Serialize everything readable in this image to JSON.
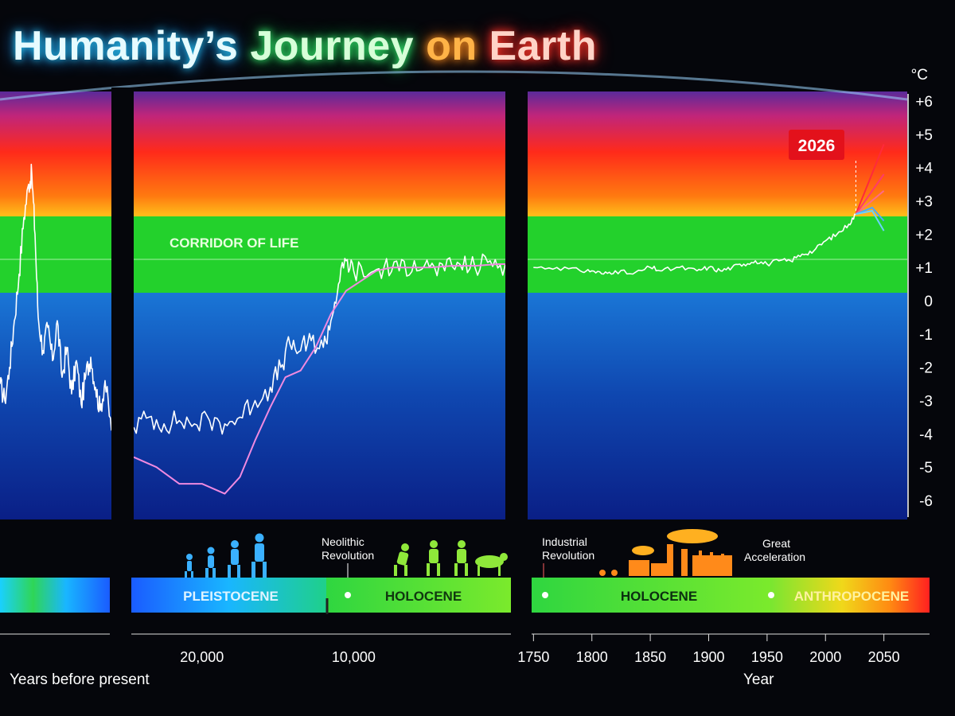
{
  "title_parts": {
    "p1": "Humanity’s",
    "p2": "Journey",
    "p3": "on",
    "p4": "Earth"
  },
  "colors": {
    "hot": "#ff1a1a",
    "corridor": "#23d12c",
    "cold": "#0a3fb0",
    "series_white": "#ffffff",
    "series_pink": "#f08ae0",
    "badge": "#e3111b"
  },
  "chart_data": {
    "type": "line",
    "y_unit": "°C",
    "yticks": [
      "+6",
      "+5",
      "+4",
      "+3",
      "+2",
      "+1",
      "0",
      "-1",
      "-2",
      "-3",
      "-4",
      "-5",
      "-6"
    ],
    "ylim": [
      -6,
      6
    ],
    "corridor_label": "CORRIDOR OF LIFE",
    "corridor_range": [
      0,
      2
    ],
    "panels": [
      {
        "name": "panel-1",
        "x_axis": "years before present",
        "series": [
          {
            "color_key": "series_white",
            "points": [
              [
                0,
                -2.5
              ],
              [
                6,
                -3.0
              ],
              [
                12,
                -2.0
              ],
              [
                18,
                -0.6
              ],
              [
                24,
                0.8
              ],
              [
                30,
                2.5
              ],
              [
                36,
                3.5
              ],
              [
                40,
                3.8
              ],
              [
                44,
                2.0
              ],
              [
                48,
                -0.5
              ],
              [
                54,
                -1.5
              ],
              [
                60,
                -0.8
              ],
              [
                66,
                -1.8
              ],
              [
                72,
                -0.6
              ],
              [
                78,
                -2.3
              ],
              [
                84,
                -1.4
              ],
              [
                90,
                -2.8
              ],
              [
                96,
                -1.8
              ],
              [
                102,
                -3.1
              ],
              [
                108,
                -2.2
              ],
              [
                114,
                -1.7
              ],
              [
                120,
                -2.6
              ],
              [
                126,
                -3.3
              ],
              [
                132,
                -2.4
              ],
              [
                140,
                -3.9
              ]
            ]
          }
        ]
      },
      {
        "name": "panel-2",
        "x_axis": "years before present",
        "xticks": [
          {
            "label": "20,000",
            "value": 20000
          },
          {
            "label": "10,000",
            "value": 10000
          }
        ],
        "xlim": [
          24500,
          0
        ],
        "series": [
          {
            "color_key": "series_white",
            "points": [
              [
                24500,
                -3.8
              ],
              [
                23500,
                -3.5
              ],
              [
                22500,
                -3.7
              ],
              [
                21500,
                -3.6
              ],
              [
                20500,
                -3.7
              ],
              [
                19500,
                -3.6
              ],
              [
                18500,
                -3.7
              ],
              [
                17500,
                -3.5
              ],
              [
                16500,
                -3.0
              ],
              [
                15500,
                -2.6
              ],
              [
                14800,
                -2.0
              ],
              [
                14200,
                -1.3
              ],
              [
                13500,
                -1.5
              ],
              [
                12800,
                -1.2
              ],
              [
                12000,
                -1.4
              ],
              [
                11500,
                -0.6
              ],
              [
                11000,
                0.5
              ],
              [
                10500,
                1.2
              ],
              [
                10000,
                0.9
              ],
              [
                9000,
                0.8
              ],
              [
                8000,
                1.0
              ],
              [
                7000,
                0.9
              ],
              [
                6000,
                1.2
              ],
              [
                5000,
                1.0
              ],
              [
                4000,
                0.9
              ],
              [
                3000,
                1.1
              ],
              [
                2000,
                1.0
              ],
              [
                1000,
                1.2
              ],
              [
                0,
                1.1
              ]
            ]
          },
          {
            "color_key": "series_pink",
            "points": [
              [
                24500,
                -4.7
              ],
              [
                23000,
                -5.0
              ],
              [
                21500,
                -5.5
              ],
              [
                20000,
                -5.5
              ],
              [
                18500,
                -5.8
              ],
              [
                17500,
                -5.3
              ],
              [
                16500,
                -4.2
              ],
              [
                15500,
                -3.2
              ],
              [
                14500,
                -2.3
              ],
              [
                13500,
                -2.1
              ],
              [
                12500,
                -1.4
              ],
              [
                11500,
                -0.4
              ],
              [
                10500,
                0.3
              ],
              [
                9500,
                0.6
              ],
              [
                8500,
                0.9
              ],
              [
                7500,
                1.0
              ],
              [
                6500,
                1.0
              ],
              [
                5000,
                1.0
              ],
              [
                3500,
                1.05
              ],
              [
                2000,
                1.05
              ],
              [
                500,
                1.1
              ],
              [
                0,
                1.1
              ]
            ]
          }
        ]
      },
      {
        "name": "panel-3",
        "x_axis": "year",
        "xticks": [
          1750,
          1800,
          1850,
          1900,
          1950,
          2000,
          2050
        ],
        "xlim": [
          1745,
          2070
        ],
        "series": [
          {
            "color_key": "series_white",
            "points": [
              [
                1750,
                1.0
              ],
              [
                1770,
                1.0
              ],
              [
                1790,
                0.9
              ],
              [
                1800,
                0.9
              ],
              [
                1810,
                0.8
              ],
              [
                1820,
                0.9
              ],
              [
                1835,
                0.8
              ],
              [
                1850,
                1.0
              ],
              [
                1860,
                0.9
              ],
              [
                1875,
                1.0
              ],
              [
                1890,
                0.9
              ],
              [
                1900,
                1.0
              ],
              [
                1910,
                0.9
              ],
              [
                1920,
                1.0
              ],
              [
                1930,
                1.1
              ],
              [
                1940,
                1.2
              ],
              [
                1950,
                1.1
              ],
              [
                1960,
                1.2
              ],
              [
                1970,
                1.2
              ],
              [
                1980,
                1.4
              ],
              [
                1990,
                1.5
              ],
              [
                2000,
                1.8
              ],
              [
                2010,
                2.0
              ],
              [
                2020,
                2.3
              ],
              [
                2026,
                2.6
              ]
            ]
          }
        ],
        "projections": [
          {
            "color": "#ff2a3a",
            "points": [
              [
                2026,
                2.6
              ],
              [
                2050,
                4.7
              ]
            ]
          },
          {
            "color": "#ff3a6a",
            "points": [
              [
                2026,
                2.6
              ],
              [
                2050,
                3.8
              ]
            ]
          },
          {
            "color": "#ff6a8a",
            "points": [
              [
                2026,
                2.6
              ],
              [
                2050,
                3.3
              ]
            ]
          },
          {
            "color": "#4aa8ff",
            "points": [
              [
                2026,
                2.6
              ],
              [
                2040,
                2.8
              ],
              [
                2050,
                2.4
              ]
            ]
          },
          {
            "color": "#6ad2ff",
            "points": [
              [
                2026,
                2.6
              ],
              [
                2040,
                2.7
              ],
              [
                2050,
                2.1
              ]
            ]
          }
        ],
        "marker": {
          "label": "2026",
          "year": 2026
        }
      }
    ],
    "eras": [
      {
        "label": "PLEISTOCENE",
        "color": "#dff4ff"
      },
      {
        "label": "HOLOCENE",
        "color": "#10380f"
      },
      {
        "label": "HOLOCENE",
        "color": "#0b2f10"
      },
      {
        "label": "ANTHROPOCENE",
        "color": "#fff2a0"
      }
    ],
    "events": {
      "neolithic": [
        "Neolithic",
        "Revolution"
      ],
      "industrial": [
        "Industrial",
        "Revolution"
      ],
      "great": [
        "Great",
        "Acceleration"
      ]
    },
    "xlabel_left": "Years before present",
    "xlabel_right": "Year"
  }
}
